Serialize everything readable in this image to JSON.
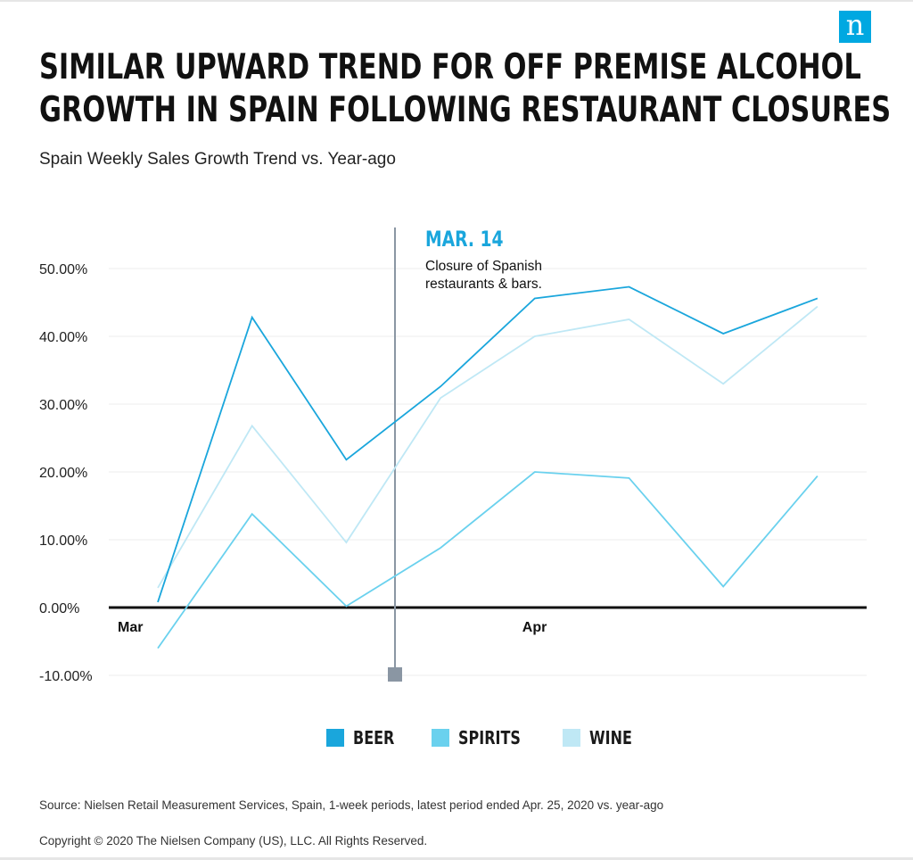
{
  "logo_text": "n",
  "title": {
    "line1": "SIMILAR UPWARD TREND FOR OFF PREMISE ALCOHOL",
    "line2": "GROWTH IN SPAIN FOLLOWING RESTAURANT CLOSURES"
  },
  "subtitle": "Spain Weekly Sales Growth Trend vs. Year-ago",
  "chart_data": {
    "type": "line",
    "y_ticks": [
      "50.00%",
      "40.00%",
      "30.00%",
      "20.00%",
      "10.00%",
      "0.00%",
      "-10.00%"
    ],
    "y_tick_values": [
      50,
      40,
      30,
      20,
      10,
      0,
      -10
    ],
    "ylim": [
      -10,
      50
    ],
    "x_period_labels": [
      {
        "label": "Mar",
        "week": 0
      },
      {
        "label": "Apr",
        "week": 4
      }
    ],
    "weeks": [
      0,
      1,
      2,
      3,
      4,
      5,
      6,
      7
    ],
    "series": [
      {
        "name": "BEER",
        "color": "#1aa6dc",
        "values": [
          0.8,
          42.8,
          21.8,
          32.6,
          45.6,
          47.3,
          40.4,
          45.6
        ]
      },
      {
        "name": "SPIRITS",
        "color": "#6ad1ee",
        "values": [
          -6.0,
          13.8,
          0.2,
          8.8,
          20.0,
          19.1,
          3.1,
          19.4
        ]
      },
      {
        "name": "WINE",
        "color": "#bfe8f5",
        "values": [
          2.9,
          26.8,
          9.6,
          30.9,
          40.0,
          42.5,
          33.0,
          44.4
        ]
      }
    ],
    "annotation": {
      "title": "MAR. 14",
      "text_line1": "Closure of Spanish",
      "text_line2": "restaurants & bars.",
      "week": 2.48
    },
    "grid": true,
    "legend_position": "bottom-center"
  },
  "legend": [
    {
      "label": "BEER",
      "color": "#1aa6dc"
    },
    {
      "label": "SPIRITS",
      "color": "#6ad1ee"
    },
    {
      "label": "WINE",
      "color": "#bfe8f5"
    }
  ],
  "source": "Source: Nielsen Retail Measurement Services, Spain, 1-week periods, latest period ended Apr. 25, 2020 vs. year-ago",
  "copyright": "Copyright © 2020 The Nielsen Company (US), LLC. All Rights Reserved."
}
